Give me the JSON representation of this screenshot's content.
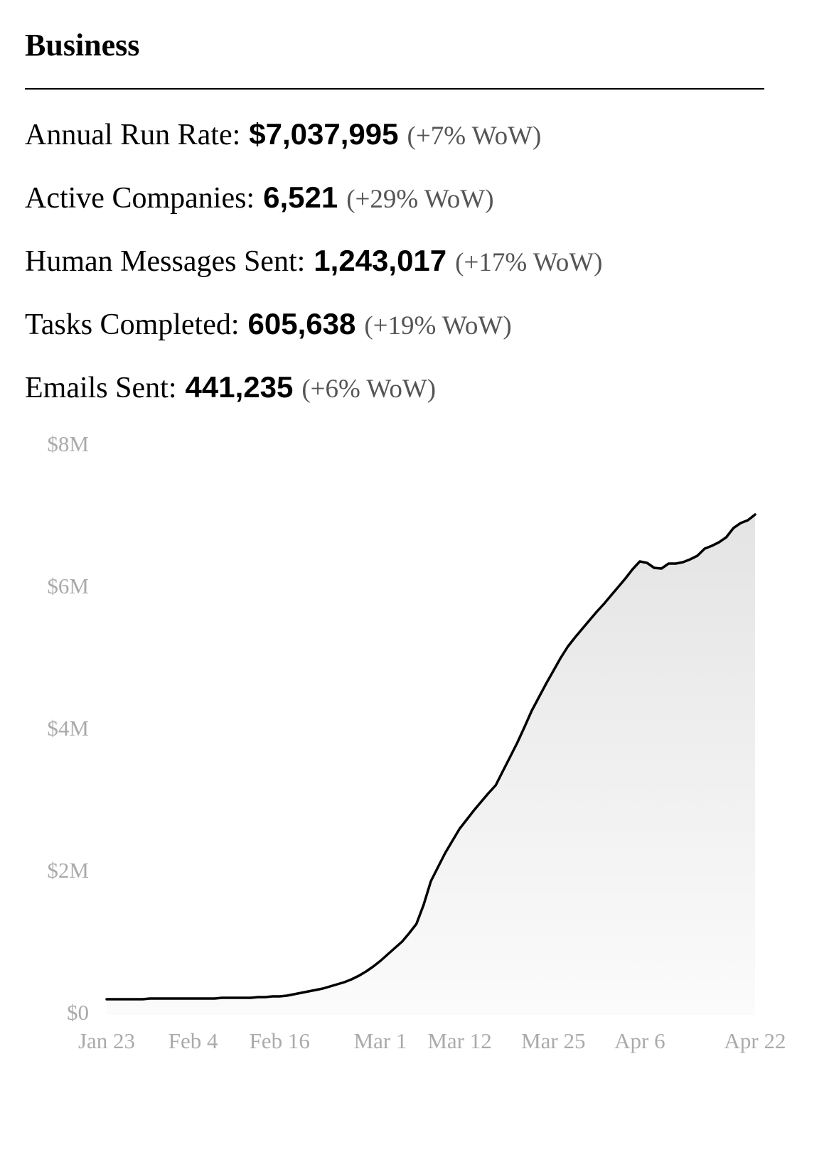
{
  "title": "Business",
  "stats": [
    {
      "label": "Annual Run Rate:",
      "value": "$7,037,995",
      "change": "(+7% WoW)"
    },
    {
      "label": "Active Companies:",
      "value": "6,521",
      "change": "(+29% WoW)"
    },
    {
      "label": "Human Messages Sent:",
      "value": "1,243,017",
      "change": "(+17% WoW)"
    },
    {
      "label": "Tasks Completed:",
      "value": "605,638",
      "change": "(+19% WoW)"
    },
    {
      "label": "Emails Sent:",
      "value": "441,235",
      "change": "(+6% WoW)"
    }
  ],
  "chart_data": {
    "type": "area",
    "categories": [
      "Jan 23",
      null,
      null,
      null,
      null,
      null,
      null,
      null,
      null,
      null,
      null,
      null,
      "Feb 4",
      null,
      null,
      null,
      null,
      null,
      null,
      null,
      null,
      null,
      null,
      null,
      "Feb 16",
      null,
      null,
      null,
      null,
      null,
      null,
      null,
      null,
      null,
      null,
      null,
      null,
      null,
      "Mar 1",
      null,
      null,
      null,
      null,
      null,
      null,
      null,
      null,
      null,
      null,
      "Mar 12",
      null,
      null,
      null,
      null,
      null,
      null,
      null,
      null,
      null,
      null,
      null,
      null,
      "Mar 25",
      null,
      null,
      null,
      null,
      null,
      null,
      null,
      null,
      null,
      null,
      null,
      "Apr 6",
      null,
      null,
      null,
      null,
      null,
      null,
      null,
      null,
      null,
      null,
      null,
      null,
      null,
      null,
      null,
      "Apr 22"
    ],
    "values": [
      0.22,
      0.22,
      0.22,
      0.22,
      0.22,
      0.22,
      0.23,
      0.23,
      0.23,
      0.23,
      0.23,
      0.23,
      0.23,
      0.23,
      0.23,
      0.23,
      0.24,
      0.24,
      0.24,
      0.24,
      0.24,
      0.25,
      0.25,
      0.26,
      0.26,
      0.27,
      0.29,
      0.31,
      0.33,
      0.35,
      0.37,
      0.4,
      0.43,
      0.46,
      0.5,
      0.55,
      0.61,
      0.68,
      0.76,
      0.85,
      0.94,
      1.03,
      1.15,
      1.28,
      1.55,
      1.88,
      2.08,
      2.28,
      2.45,
      2.62,
      2.75,
      2.88,
      3.0,
      3.12,
      3.23,
      3.43,
      3.63,
      3.83,
      4.05,
      4.28,
      4.47,
      4.66,
      4.84,
      5.02,
      5.18,
      5.31,
      5.43,
      5.55,
      5.67,
      5.78,
      5.9,
      6.02,
      6.14,
      6.27,
      6.38,
      6.36,
      6.29,
      6.28,
      6.35,
      6.35,
      6.37,
      6.41,
      6.46,
      6.56,
      6.6,
      6.65,
      6.72,
      6.85,
      6.92,
      6.96,
      7.04
    ],
    "color": "#000000",
    "ylim": [
      0,
      8
    ],
    "yticks": [
      {
        "value": 0,
        "label": "$0"
      },
      {
        "value": 2,
        "label": "$2M"
      },
      {
        "value": 4,
        "label": "$4M"
      },
      {
        "value": 6,
        "label": "$6M"
      },
      {
        "value": 8,
        "label": "$8M"
      }
    ],
    "grid": false
  }
}
